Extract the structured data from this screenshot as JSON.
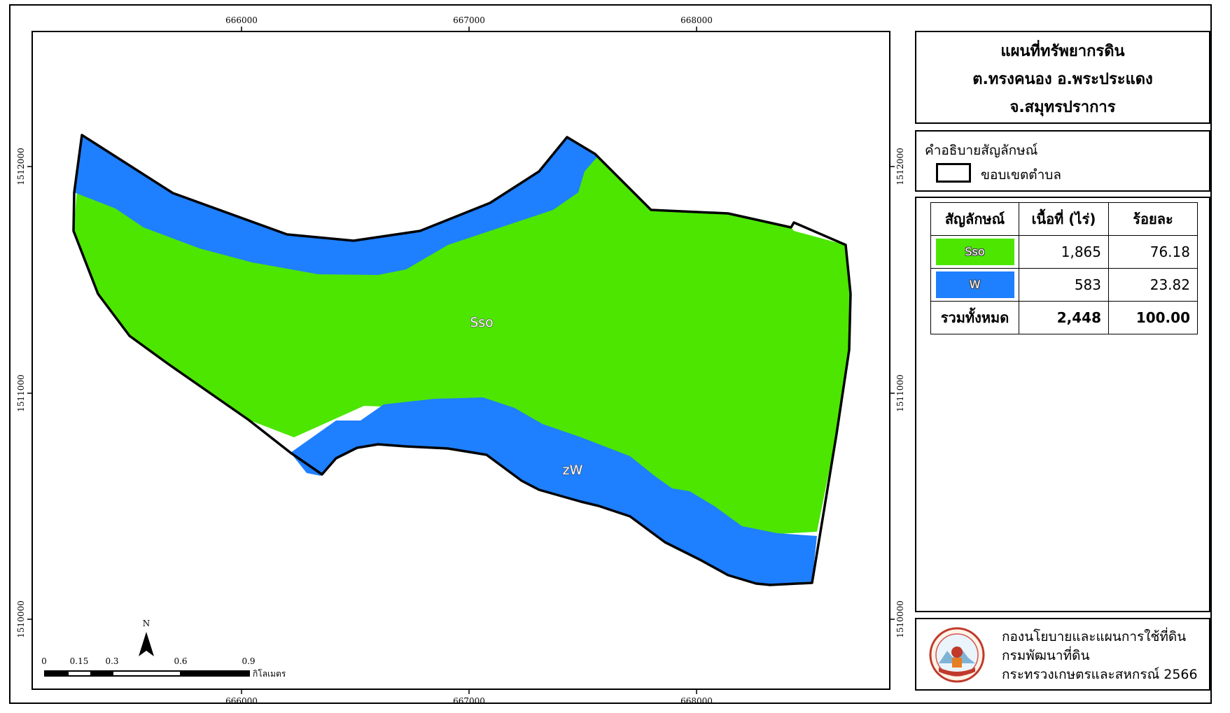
{
  "title": {
    "line1": "แผนที่ทรัพยากรดิน",
    "line2": "ต.ทรงคนอง อ.พระประแดง",
    "line3": "จ.สมุทรปราการ"
  },
  "legend": {
    "heading": "คำอธิบายสัญลักษณ์",
    "boundary_label": "ขอบเขตตำบล"
  },
  "stats_table": {
    "headers": [
      "สัญลักษณ์",
      "เนื้อที่ (ไร่)",
      "ร้อยละ"
    ],
    "rows": [
      {
        "symbol": "Sso",
        "color": "#4ce600",
        "area": "1,865",
        "percent": "76.18"
      },
      {
        "symbol": "W",
        "color": "#1e7fff",
        "area": "583",
        "percent": "23.82"
      }
    ],
    "total": {
      "label": "รวมทั้งหมด",
      "area": "2,448",
      "percent": "100.00"
    }
  },
  "map": {
    "unit_labels": [
      "Sso",
      "zW"
    ],
    "colors": {
      "soil_sso": "#4ce600",
      "water": "#1e7fff"
    },
    "x_ticks": [
      "666000",
      "667000",
      "668000"
    ],
    "y_ticks": [
      "1512000",
      "1511000",
      "1510000"
    ],
    "north": "N",
    "scalebar": {
      "ticks": [
        "0",
        "0.15",
        "0.3",
        "0.6",
        "0.9"
      ],
      "unit": "กิโลเมตร"
    }
  },
  "organization": {
    "line1": "กองนโยบายและแผนการใช้ที่ดิน",
    "line2": "กรมพัฒนาที่ดิน",
    "line3": "กระทรวงเกษตรและสหกรณ์ 2566"
  }
}
